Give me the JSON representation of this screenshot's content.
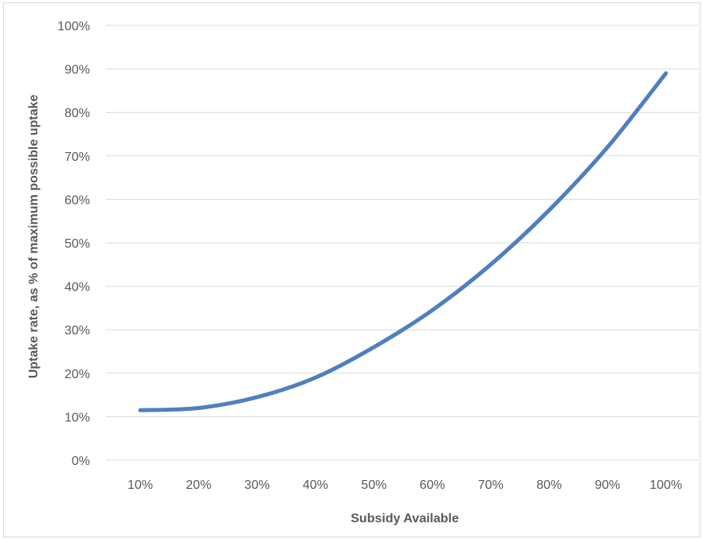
{
  "chart_data": {
    "type": "line",
    "title": "",
    "xlabel": "Subsidy Available",
    "ylabel": "Uptake rate, as % of maximum possible uptake",
    "x_ticks": [
      "10%",
      "20%",
      "30%",
      "40%",
      "50%",
      "60%",
      "70%",
      "80%",
      "90%",
      "100%"
    ],
    "y_ticks": [
      "0%",
      "10%",
      "20%",
      "30%",
      "40%",
      "50%",
      "60%",
      "70%",
      "80%",
      "90%",
      "100%"
    ],
    "ylim": [
      0,
      1
    ],
    "grid": true,
    "legend": "none",
    "line_color": "#4f7fbf",
    "series": [
      {
        "x": [
          0.1,
          0.2,
          0.3,
          0.4,
          0.5,
          0.6,
          0.7,
          0.8,
          0.9,
          1.0
        ],
        "values": [
          0.115,
          0.12,
          0.145,
          0.19,
          0.26,
          0.345,
          0.45,
          0.575,
          0.72,
          0.89
        ]
      }
    ]
  }
}
